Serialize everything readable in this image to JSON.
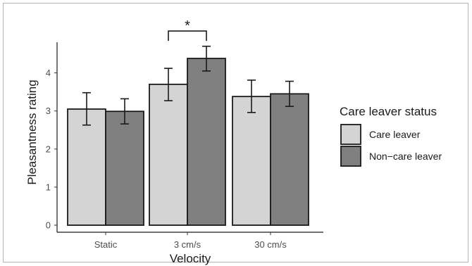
{
  "chart_data": {
    "type": "bar",
    "title": "",
    "xlabel": "Velocity",
    "ylabel": "Pleasantness rating",
    "categories": [
      "Static",
      "3 cm/s",
      "30 cm/s"
    ],
    "yticks": [
      0,
      1,
      2,
      3,
      4
    ],
    "ylim": [
      0,
      4.75
    ],
    "grid": false,
    "legend": {
      "title": "Care leaver status",
      "position": "right"
    },
    "series": [
      {
        "name": "Care leaver",
        "color": "#d4d4d4",
        "values": [
          3.05,
          3.7,
          3.38
        ],
        "error_low": [
          2.63,
          3.27,
          2.96
        ],
        "error_high": [
          3.48,
          4.12,
          3.81
        ]
      },
      {
        "name": "Non−care leaver",
        "color": "#808080",
        "values": [
          2.99,
          4.38,
          3.45
        ],
        "error_low": [
          2.66,
          4.05,
          3.12
        ],
        "error_high": [
          3.32,
          4.7,
          3.78
        ]
      }
    ],
    "annotations": [
      {
        "text": "*",
        "category": "3 cm/s",
        "y": 5.1
      }
    ]
  }
}
